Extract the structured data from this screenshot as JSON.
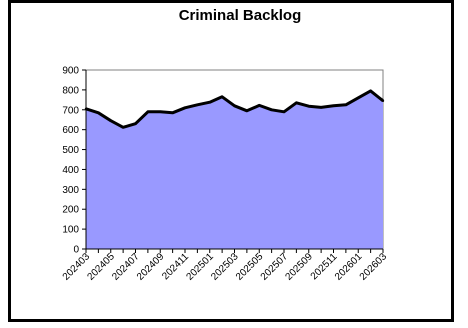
{
  "chart_data": {
    "type": "area",
    "title": "Criminal Backlog",
    "xlabel": "",
    "ylabel": "",
    "ylim": [
      0,
      900
    ],
    "y_ticks": [
      0,
      100,
      200,
      300,
      400,
      500,
      600,
      700,
      800,
      900
    ],
    "grid": false,
    "legend": "none",
    "categories": [
      "202403",
      "202404",
      "202405",
      "202406",
      "202407",
      "202408",
      "202409",
      "202410",
      "202411",
      "202412",
      "202501",
      "202502",
      "202503",
      "202504",
      "202505",
      "202506",
      "202507",
      "202508",
      "202509",
      "202510",
      "202511",
      "202512",
      "202601",
      "202602",
      "202603"
    ],
    "x_tick_labels": [
      "202403",
      "202405",
      "202407",
      "202409",
      "202411",
      "202501",
      "202503",
      "202505",
      "202507",
      "202509",
      "202511",
      "202601",
      "202603"
    ],
    "series": [
      {
        "values": [
          705,
          685,
          645,
          612,
          630,
          690,
          690,
          685,
          710,
          725,
          738,
          765,
          720,
          695,
          722,
          700,
          690,
          735,
          718,
          712,
          720,
          725,
          760,
          795,
          745
        ]
      }
    ],
    "colors": {
      "plot_background": "#ffffff",
      "area_fill": "#9999ff",
      "line": "#000000",
      "frame": "#000000"
    }
  }
}
